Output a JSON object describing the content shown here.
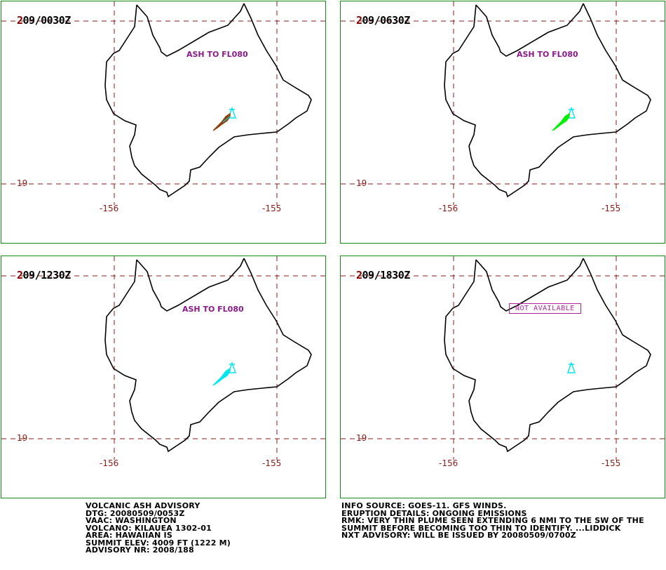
{
  "panels": [
    {
      "lead": "2",
      "time": "09/0030Z",
      "ash_label": "ASH TO FL080",
      "plume": "brown",
      "na": ""
    },
    {
      "lead": "2",
      "time": "09/0630Z",
      "ash_label": "ASH TO FL080",
      "plume": "green",
      "na": ""
    },
    {
      "lead": "2",
      "time": "09/1230Z",
      "ash_label": "ASH TO FL080",
      "plume": "cyan",
      "na": ""
    },
    {
      "lead": "2",
      "time": "09/1830Z",
      "ash_label": "",
      "plume": "none",
      "na": "NOT AVAILABLE"
    }
  ],
  "grid_labels": {
    "lat": "19",
    "lon_left": "-156",
    "lon_right": "-155"
  },
  "colors": {
    "border": "#138a13",
    "coast": "#000000",
    "grid": "#8b1a1a",
    "volcano": "#00e5ee",
    "plume_brown": "#8b4513",
    "plume_green": "#00ee00",
    "plume_cyan": "#00e5ee",
    "ash_label": "#8b1a8b"
  },
  "advisory_left": [
    "VOLCANIC ASH ADVISORY",
    "DTG: 20080509/0053Z",
    "VAAC: WASHINGTON",
    "VOLCANO: KILAUEA 1302-01",
    "AREA: HAWAIIAN IS",
    "SUMMIT ELEV: 4009 FT (1222 M)",
    "ADVISORY NR: 2008/188"
  ],
  "advisory_right": [
    "INFO SOURCE: GOES-11. GFS WINDS.",
    "ERUPTION DETAILS: ONGOING EMISSIONS",
    "RMK: VERY THIN PLUME SEEN EXTENDING 6 NMI TO THE SW OF THE",
    "SUMMIT BEFORE BECOMING TOO THIN TO IDENTIFY. ...LIDDICK",
    "NXT ADVISORY: WILL BE ISSUED BY 20080509/0700Z"
  ]
}
